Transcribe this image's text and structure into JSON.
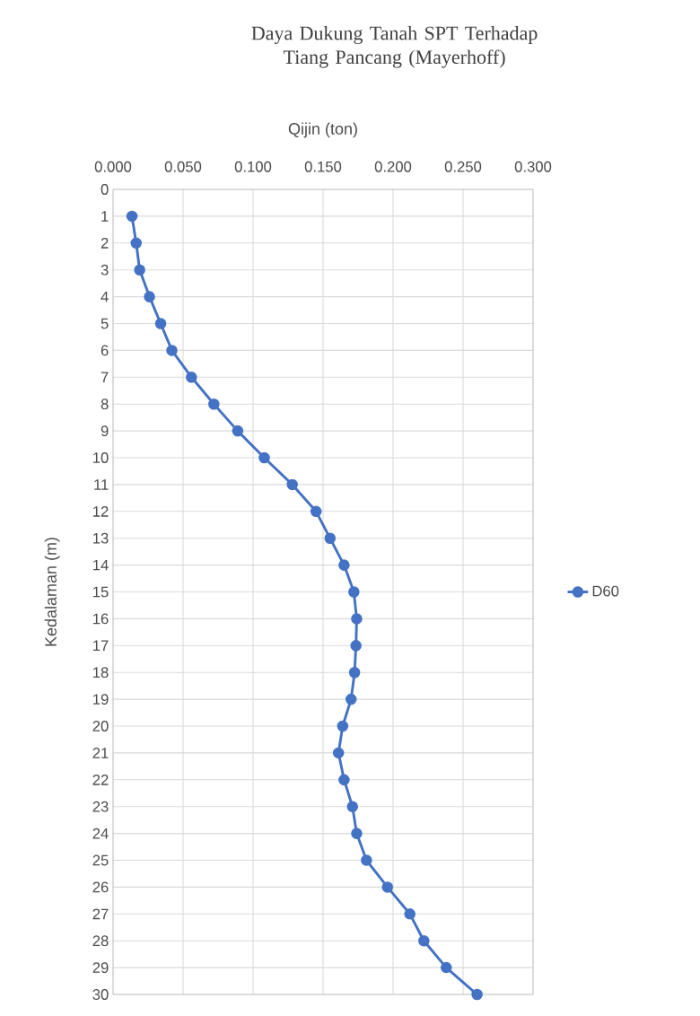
{
  "chart_data": {
    "type": "line",
    "title": "Daya Dukung Tanah SPT Terhadap Tiang Pancang (Mayerhoff)",
    "xlabel": "Qijin (ton)",
    "ylabel": "Kedalaman (m)",
    "series": [
      {
        "name": "D60",
        "color": "#4472c4",
        "x": [
          0.0135,
          0.0165,
          0.019,
          0.026,
          0.034,
          0.042,
          0.056,
          0.072,
          0.089,
          0.108,
          0.128,
          0.145,
          0.155,
          0.165,
          0.172,
          0.174,
          0.1735,
          0.1725,
          0.17,
          0.164,
          0.161,
          0.165,
          0.171,
          0.174,
          0.181,
          0.196,
          0.212,
          0.222,
          0.238,
          0.26
        ],
        "values": [
          1,
          2,
          3,
          4,
          5,
          6,
          7,
          8,
          9,
          10,
          11,
          12,
          13,
          14,
          15,
          16,
          17,
          18,
          19,
          20,
          21,
          22,
          23,
          24,
          25,
          26,
          27,
          28,
          29,
          30
        ]
      }
    ],
    "xlim": [
      0,
      0.3
    ],
    "xticks": [
      {
        "value": 0,
        "label": "0.000"
      },
      {
        "value": 0.05,
        "label": "0.050"
      },
      {
        "value": 0.1,
        "label": "0.100"
      },
      {
        "value": 0.15,
        "label": "0.150"
      },
      {
        "value": 0.2,
        "label": "0.200"
      },
      {
        "value": 0.25,
        "label": "0.250"
      },
      {
        "value": 0.3,
        "label": "0.300"
      }
    ],
    "ylim": [
      30,
      0
    ],
    "yticks": [
      0,
      1,
      2,
      3,
      4,
      5,
      6,
      7,
      8,
      9,
      10,
      11,
      12,
      13,
      14,
      15,
      16,
      17,
      18,
      19,
      20,
      21,
      22,
      23,
      24,
      25,
      26,
      27,
      28,
      29,
      30
    ],
    "grid": true,
    "legend": "right",
    "marker": "circle",
    "line_style": "solid"
  }
}
